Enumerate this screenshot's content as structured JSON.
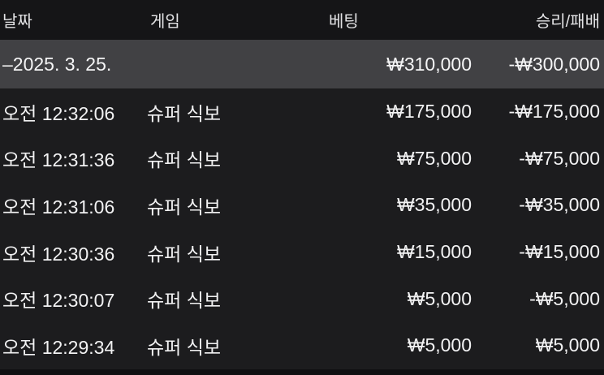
{
  "table": {
    "headers": {
      "date": "날짜",
      "game": "게임",
      "bet": "베팅",
      "winloss": "승리/패배"
    },
    "summary": {
      "date": "–2025. 3. 25.",
      "bet": "₩310,000",
      "winloss": "-₩300,000"
    },
    "rows": [
      {
        "time": "오전 12:32:06",
        "game": "슈퍼 식보",
        "bet": "₩175,000",
        "winloss": "-₩175,000"
      },
      {
        "time": "오전 12:31:36",
        "game": "슈퍼 식보",
        "bet": "₩75,000",
        "winloss": "-₩75,000"
      },
      {
        "time": "오전 12:31:06",
        "game": "슈퍼 식보",
        "bet": "₩35,000",
        "winloss": "-₩35,000"
      },
      {
        "time": "오전 12:30:36",
        "game": "슈퍼 식보",
        "bet": "₩15,000",
        "winloss": "-₩15,000"
      },
      {
        "time": "오전 12:30:07",
        "game": "슈퍼 식보",
        "bet": "₩5,000",
        "winloss": "-₩5,000"
      },
      {
        "time": "오전 12:29:34",
        "game": "슈퍼 식보",
        "bet": "₩5,000",
        "winloss": "₩5,000"
      }
    ],
    "colors": {
      "background": "#1c1c1e",
      "header_background": "#151517",
      "summary_row_background": "#414144",
      "text": "#f2f2f3",
      "header_text": "#e4e4e6"
    }
  }
}
